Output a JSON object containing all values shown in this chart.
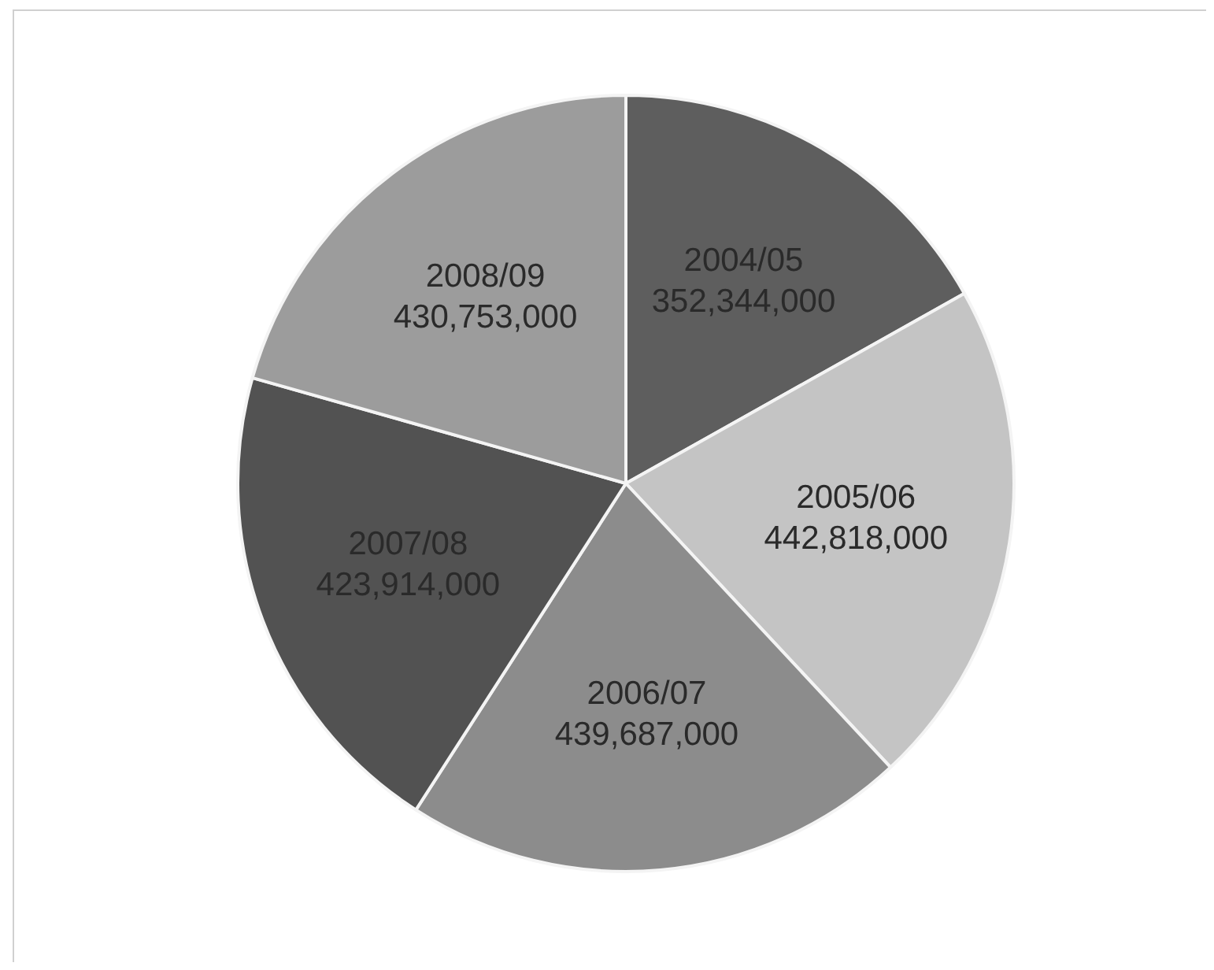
{
  "chart_data": {
    "type": "pie",
    "categories": [
      "2004/05",
      "2005/06",
      "2006/07",
      "2007/08",
      "2008/09"
    ],
    "values": [
      352344000,
      442818000,
      439687000,
      423914000,
      430753000
    ],
    "value_labels": [
      "352,344,000",
      "442,818,000",
      "439,687,000",
      "423,914,000",
      "430,753,000"
    ],
    "colors": [
      "#5e5e5e",
      "#c4c4c4",
      "#8c8c8c",
      "#525252",
      "#9c9c9c"
    ],
    "legend": false
  }
}
